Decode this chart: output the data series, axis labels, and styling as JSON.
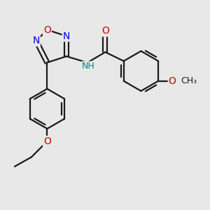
{
  "background_color": "#e8e8e8",
  "bond_color": "#1a1a1a",
  "bond_width": 1.6,
  "atom_colors": {
    "N": "#0000ee",
    "O": "#cc0000",
    "C": "#1a1a1a",
    "H": "#008888"
  },
  "font_size_atom": 9,
  "font_size_group": 8,
  "figsize": [
    3.0,
    3.0
  ],
  "dpi": 100,
  "xlim": [
    -1,
    9
  ],
  "ylim": [
    -3,
    7
  ]
}
